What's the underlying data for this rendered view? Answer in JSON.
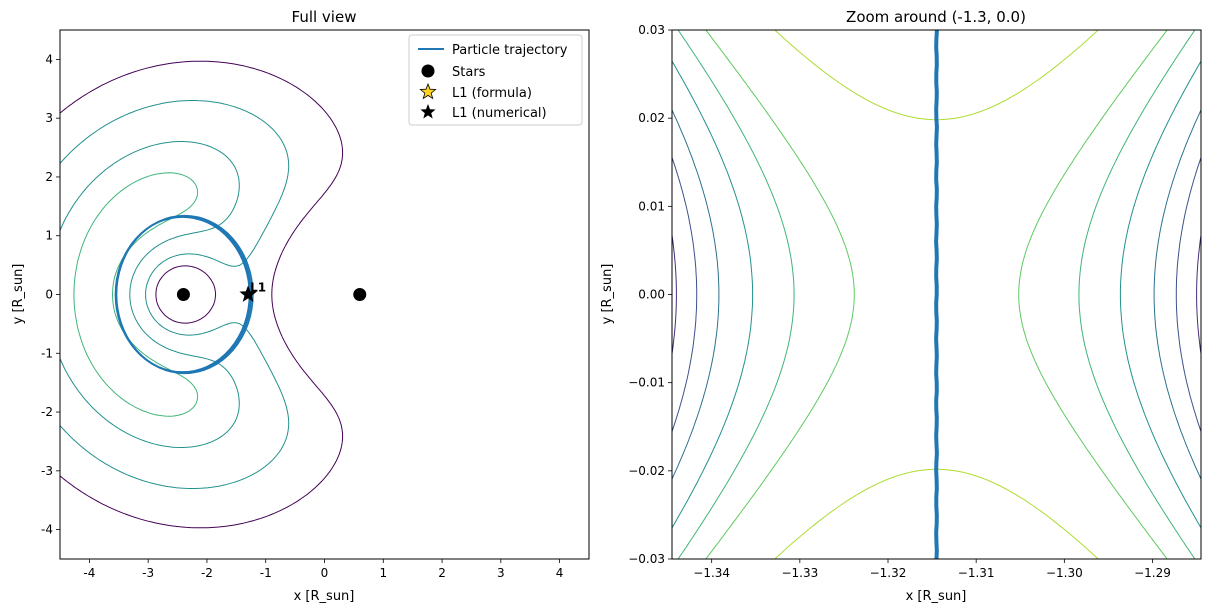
{
  "chart_data": [
    {
      "type": "contour",
      "title": "Full view",
      "xlabel": "x [R_sun]",
      "ylabel": "y [R_sun]",
      "xlim": [
        -4.5,
        4.5
      ],
      "ylim": [
        -4.5,
        4.5
      ],
      "xticks": [
        "-4",
        "-3",
        "-2",
        "-1",
        "0",
        "1",
        "2",
        "3",
        "4"
      ],
      "xtick_values": [
        -4,
        -3,
        -2,
        -1,
        0,
        1,
        2,
        3,
        4
      ],
      "yticks": [
        "-4",
        "-3",
        "-2",
        "-1",
        "0",
        "1",
        "2",
        "3",
        "4"
      ],
      "ytick_values": [
        -4,
        -3,
        -2,
        -1,
        0,
        1,
        2,
        3,
        4
      ],
      "legend_position": "top-right",
      "legend": [
        {
          "label": "Particle trajectory",
          "marker": "line",
          "color": "#1f77b4"
        },
        {
          "label": "Stars",
          "marker": "circle",
          "color": "#000000"
        },
        {
          "label": "L1 (formula)",
          "marker": "star",
          "color": "#ffd21f"
        },
        {
          "label": "L1 (numerical)",
          "marker": "star",
          "color": "#000000"
        }
      ],
      "stars": [
        {
          "x": -2.4,
          "y": 0.0
        },
        {
          "x": 0.6,
          "y": 0.0
        }
      ],
      "l1_formula": {
        "x": -1.3,
        "y": 0.0
      },
      "l1_numerical": {
        "x": -1.3,
        "y": 0.0
      },
      "annotation": "L1",
      "trajectory": {
        "center_x": -2.4,
        "center_y": 0.0,
        "radius_x": 1.15,
        "radius_y": 1.33
      },
      "grid": false
    },
    {
      "type": "contour",
      "title": "Zoom around (-1.3, 0.0)",
      "xlabel": "x [R_sun]",
      "ylabel": "y [R_sun]",
      "xlim": [
        -1.3445,
        -1.2845
      ],
      "ylim": [
        -0.03,
        0.03
      ],
      "xticks": [
        "−1.34",
        "−1.33",
        "−1.32",
        "−1.31",
        "−1.30",
        "−1.29"
      ],
      "xtick_values": [
        -1.34,
        -1.33,
        -1.32,
        -1.31,
        -1.3,
        -1.29
      ],
      "yticks": [
        "−0.03",
        "−0.02",
        "−0.01",
        "0.00",
        "0.01",
        "0.02",
        "0.03"
      ],
      "ytick_values": [
        -0.03,
        -0.02,
        -0.01,
        0.0,
        0.01,
        0.02,
        0.03
      ],
      "trajectory_x": -1.3145,
      "saddle_x": -1.3145,
      "grid": false
    }
  ],
  "colors": {
    "trajectory": "#1f77b4",
    "contour_levels": [
      "#440154",
      "#3b528b",
      "#21918c",
      "#5ec962",
      "#addc30",
      "#fde725"
    ]
  }
}
